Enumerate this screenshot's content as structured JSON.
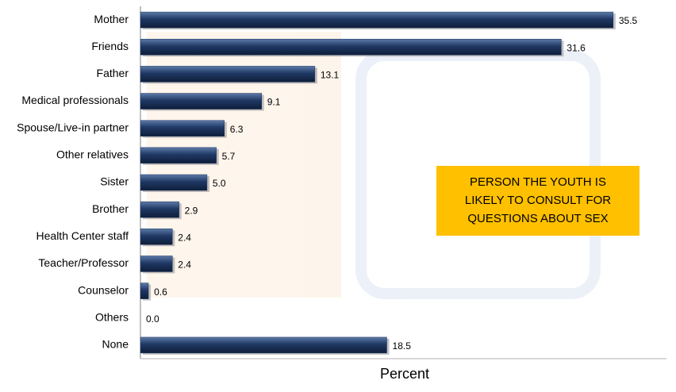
{
  "chart_data": {
    "type": "bar",
    "orientation": "horizontal",
    "categories": [
      "Mother",
      "Friends",
      "Father",
      "Medical professionals",
      "Spouse/Live-in partner",
      "Other relatives",
      "Sister",
      "Brother",
      "Health Center staff",
      "Teacher/Professor",
      "Counselor",
      "Others",
      "None"
    ],
    "values": [
      35.5,
      31.6,
      13.1,
      9.1,
      6.3,
      5.7,
      5.0,
      2.9,
      2.4,
      2.4,
      0.6,
      0.0,
      18.5
    ],
    "value_labels": [
      "35.5",
      "31.6",
      "13.1",
      "9.1",
      "6.3",
      "5.7",
      "5.0",
      "2.9",
      "2.4",
      "2.4",
      "0.6",
      "0.0",
      "18.5"
    ],
    "color": "#1f3864",
    "xlim": [
      0,
      39.5
    ],
    "xlabel": "Percent",
    "annotation": [
      "PERSON THE YOUTH IS",
      "LIKELY TO CONSULT FOR",
      "QUESTIONS ABOUT SEX"
    ]
  }
}
